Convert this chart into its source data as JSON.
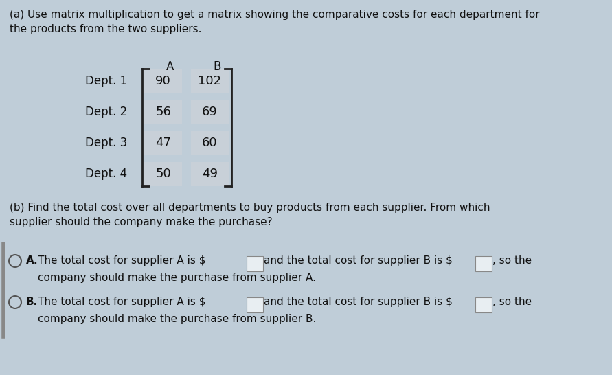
{
  "title_a": "(a) Use matrix multiplication to get a matrix showing the comparative costs for each department for\nthe products from the two suppliers.",
  "title_b": "(b) Find the total cost over all departments to buy products from each supplier. From which\nsupplier should the company make the purchase?",
  "col_headers": [
    "A",
    "B"
  ],
  "row_headers": [
    "Dept. 1",
    "Dept. 2",
    "Dept. 3",
    "Dept. 4"
  ],
  "matrix_values": [
    [
      90,
      102
    ],
    [
      56,
      69
    ],
    [
      47,
      60
    ],
    [
      50,
      49
    ]
  ],
  "bg_color": "#bfcdd8",
  "matrix_cell_bg": "#c8d0d8",
  "bracket_color": "#222222",
  "text_color": "#111111",
  "faded_text_color": "#7a9ab0",
  "circle_color": "#555555",
  "box_fill": "#e8eef2",
  "box_edge": "#888888",
  "left_bar_color": "#888888"
}
